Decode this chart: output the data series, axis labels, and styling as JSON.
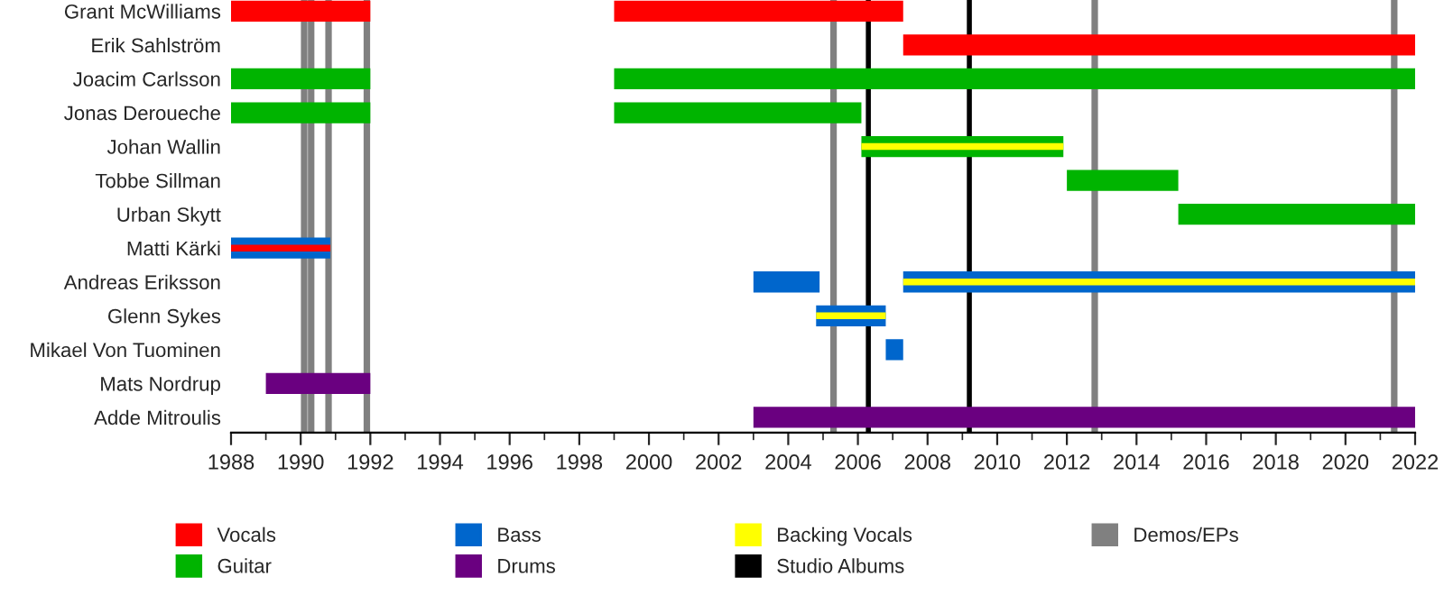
{
  "chart_data": {
    "type": "bar",
    "orientation": "horizontal",
    "categories": [
      "Grant McWilliams",
      "Erik Sahlström",
      "Joacim Carlsson",
      "Jonas Deroueche",
      "Johan Wallin",
      "Tobbe Sillman",
      "Urban Skytt",
      "Matti Kärki",
      "Andreas Eriksson",
      "Glenn Sykes",
      "Mikael Von Tuominen",
      "Mats Nordrup",
      "Adde Mitroulis"
    ],
    "series": [
      {
        "name": "Vocals",
        "color": "#ff0000",
        "base": [
          1988,
          2007.3,
          null,
          null,
          null,
          null,
          null,
          null,
          null,
          null,
          null,
          null,
          null
        ],
        "values": [
          4,
          14.7,
          null,
          null,
          null,
          null,
          null,
          null,
          null,
          null,
          null,
          null,
          null
        ]
      },
      {
        "color": "#ff0000",
        "base": [
          1999,
          null,
          null,
          null,
          null,
          null,
          null,
          null,
          null,
          null,
          null,
          null,
          null
        ],
        "values": [
          8.3,
          null,
          null,
          null,
          null,
          null,
          null,
          null,
          null,
          null,
          null,
          null,
          null
        ]
      },
      {
        "name": "Guitar",
        "color": "#00b400",
        "base": [
          null,
          null,
          1988,
          1988,
          2006.1,
          2012,
          2015.2,
          null,
          null,
          null,
          null,
          null,
          null
        ],
        "values": [
          null,
          null,
          4,
          4,
          5.8,
          3.2,
          6.8,
          null,
          null,
          null,
          null,
          null,
          null
        ]
      },
      {
        "color": "#00b400",
        "base": [
          null,
          null,
          1999,
          1999,
          null,
          null,
          null,
          null,
          null,
          null,
          null,
          null,
          null
        ],
        "values": [
          null,
          null,
          23,
          7.1,
          null,
          null,
          null,
          null,
          null,
          null,
          null,
          null,
          null
        ]
      },
      {
        "name": "Bass",
        "color": "#0066cc",
        "base": [
          null,
          null,
          null,
          null,
          null,
          null,
          null,
          1988,
          2003,
          2004.8,
          2006.8,
          null,
          null
        ],
        "values": [
          null,
          null,
          null,
          null,
          null,
          null,
          null,
          2.85,
          1.9,
          2,
          0.5,
          null,
          null
        ]
      },
      {
        "color": "#0066cc",
        "base": [
          null,
          null,
          null,
          null,
          null,
          null,
          null,
          null,
          2007.3,
          null,
          null,
          null,
          null
        ],
        "values": [
          null,
          null,
          null,
          null,
          null,
          null,
          null,
          null,
          14.7,
          null,
          null,
          null,
          null
        ]
      },
      {
        "name": "Drums",
        "color": "#6a0080",
        "base": [
          null,
          null,
          null,
          null,
          null,
          null,
          null,
          null,
          null,
          null,
          null,
          1989,
          2003
        ],
        "values": [
          null,
          null,
          null,
          null,
          null,
          null,
          null,
          null,
          null,
          null,
          null,
          3,
          19
        ]
      },
      {
        "color": "#ff0000",
        "base": [
          null,
          null,
          null,
          null,
          null,
          null,
          null,
          1988,
          null,
          null,
          null,
          null,
          null
        ],
        "values": [
          null,
          null,
          null,
          null,
          null,
          null,
          null,
          2.85,
          null,
          null,
          null,
          null,
          null
        ]
      },
      {
        "name": "Backing Vocals",
        "color": "#ffff00",
        "base": [
          null,
          null,
          null,
          null,
          2006.1,
          null,
          null,
          null,
          2007.3,
          2004.8,
          null,
          null,
          null
        ],
        "values": [
          null,
          null,
          null,
          null,
          5.8,
          null,
          null,
          null,
          14.7,
          2,
          null,
          null,
          null
        ]
      }
    ],
    "ref_lines": [
      {
        "axis": "x",
        "value": 2006.3,
        "label": "Studio Albums",
        "color": "#000000"
      },
      {
        "axis": "x",
        "value": 2009.2,
        "color": "#000000"
      },
      {
        "axis": "x",
        "value": 1990.1,
        "label": "Demos/EPs",
        "color": "#808080"
      },
      {
        "axis": "x",
        "value": 1990.3,
        "color": "#808080"
      },
      {
        "axis": "x",
        "value": 1990.8,
        "color": "#808080"
      },
      {
        "axis": "x",
        "value": 1991.9,
        "color": "#808080"
      },
      {
        "axis": "x",
        "value": 2005.3,
        "color": "#808080"
      },
      {
        "axis": "x",
        "value": 2012.8,
        "color": "#808080"
      },
      {
        "axis": "x",
        "value": 2021.4,
        "color": "#808080"
      }
    ],
    "xlim": [
      1988,
      2022
    ],
    "xticks": [
      1988,
      1990,
      1992,
      1994,
      1996,
      1998,
      2000,
      2002,
      2004,
      2006,
      2008,
      2010,
      2012,
      2014,
      2016,
      2018,
      2020,
      2022
    ],
    "legend": "bottom",
    "grid": false
  }
}
